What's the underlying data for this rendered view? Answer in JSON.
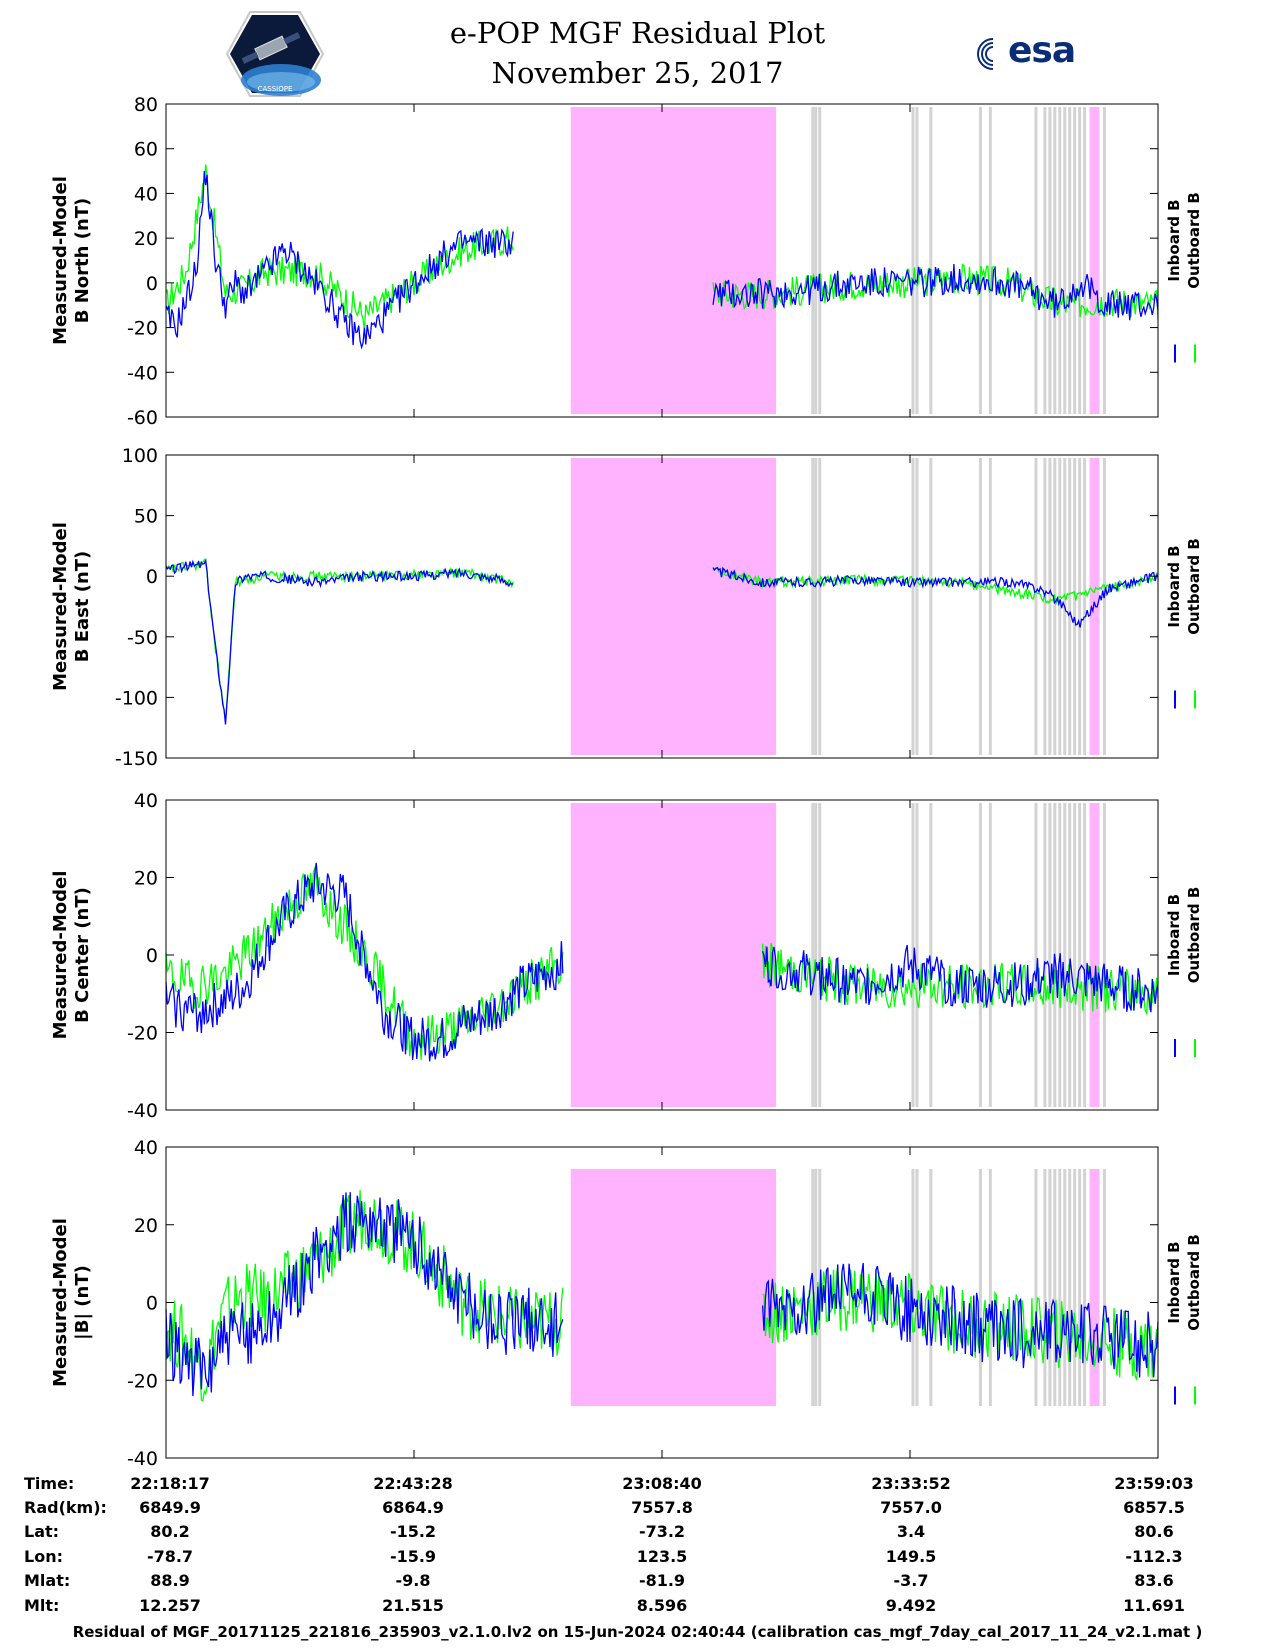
{
  "header": {
    "title": "e-POP MGF Residual Plot",
    "date": "November 25, 2017",
    "left_logo": "cassiope-mission-logo",
    "left_logo_text": "CASSIOPE",
    "right_logo_text": "esa"
  },
  "colors": {
    "inboard": "#0000ff",
    "outboard": "#00ff00",
    "gap_magenta": "#ffb3ff",
    "gap_gray": "#d3d3d3"
  },
  "chart_data": [
    {
      "type": "line",
      "ylabel_line1": "Measured-Model",
      "ylabel_line2": "B North (nT)",
      "ylim": [
        -60,
        80
      ],
      "yticks": [
        "80",
        "60",
        "40",
        "20",
        "0",
        "-20",
        "-40",
        "-60"
      ],
      "yticks_values": [
        80,
        60,
        40,
        20,
        0,
        -20,
        -40,
        -60
      ],
      "legend": [
        "Inboard B",
        "Outboard B"
      ],
      "series": [
        {
          "name": "Inboard B",
          "color": "blue",
          "x": [
            0,
            0.01,
            0.02,
            0.03,
            0.04,
            0.05,
            0.06,
            0.07,
            0.08,
            0.1,
            0.12,
            0.14,
            0.16,
            0.18,
            0.2,
            0.22,
            0.25,
            0.28,
            0.3,
            0.35,
            0.4,
            0.45,
            0.5,
            0.55,
            0.6,
            0.65,
            0.7,
            0.75,
            0.8,
            0.85,
            0.9,
            0.92,
            0.95,
            1.0
          ],
          "values": [
            -15,
            -20,
            -8,
            5,
            50,
            10,
            -10,
            0,
            -5,
            5,
            15,
            5,
            -5,
            -18,
            -25,
            -15,
            0,
            12,
            18,
            18,
            null,
            null,
            null,
            -5,
            -5,
            -3,
            0,
            0,
            2,
            0,
            -10,
            0,
            -10,
            -10
          ]
        },
        {
          "name": "Outboard B",
          "color": "green",
          "x": [
            0,
            0.02,
            0.04,
            0.06,
            0.08,
            0.1,
            0.15,
            0.2,
            0.25,
            0.3,
            0.35,
            0.4,
            0.45,
            0.5,
            0.55,
            0.6,
            0.65,
            0.7,
            0.75,
            0.8,
            0.85,
            0.9,
            0.95,
            1.0
          ],
          "values": [
            -10,
            5,
            50,
            -5,
            -2,
            5,
            5,
            -15,
            0,
            15,
            20,
            null,
            null,
            null,
            -5,
            -5,
            -3,
            0,
            0,
            2,
            0,
            -10,
            -8,
            -10
          ]
        }
      ]
    },
    {
      "type": "line",
      "ylabel_line1": "Measured-Model",
      "ylabel_line2": "B East (nT)",
      "ylim": [
        -150,
        100
      ],
      "yticks": [
        "100",
        "50",
        "0",
        "-50",
        "-100",
        "-150"
      ],
      "yticks_values": [
        100,
        50,
        0,
        -50,
        -100,
        -150
      ],
      "legend": [
        "Inboard B",
        "Outboard B"
      ],
      "series": [
        {
          "name": "Inboard B",
          "color": "blue",
          "x": [
            0,
            0.02,
            0.04,
            0.05,
            0.06,
            0.07,
            0.08,
            0.1,
            0.15,
            0.2,
            0.25,
            0.3,
            0.35,
            0.4,
            0.45,
            0.5,
            0.55,
            0.6,
            0.65,
            0.7,
            0.75,
            0.8,
            0.85,
            0.88,
            0.9,
            0.92,
            0.95,
            1.0
          ],
          "values": [
            5,
            8,
            10,
            -60,
            -120,
            -5,
            0,
            0,
            -5,
            0,
            0,
            3,
            -5,
            null,
            null,
            null,
            5,
            -5,
            -5,
            -3,
            -5,
            -5,
            -5,
            -10,
            -20,
            -40,
            -10,
            0
          ]
        },
        {
          "name": "Outboard B",
          "color": "green",
          "x": [
            0,
            0.02,
            0.04,
            0.05,
            0.06,
            0.07,
            0.1,
            0.2,
            0.3,
            0.35,
            0.4,
            0.45,
            0.5,
            0.55,
            0.6,
            0.7,
            0.8,
            0.9,
            1.0
          ],
          "values": [
            5,
            8,
            10,
            -60,
            -120,
            -5,
            0,
            0,
            3,
            -5,
            null,
            null,
            null,
            5,
            -5,
            -3,
            -5,
            -20,
            0
          ]
        }
      ]
    },
    {
      "type": "line",
      "ylabel_line1": "Measured-Model",
      "ylabel_line2": "B Center (nT)",
      "ylim": [
        -40,
        40
      ],
      "yticks": [
        "40",
        "20",
        "0",
        "-20",
        "-40"
      ],
      "yticks_values": [
        40,
        20,
        0,
        -20,
        -40
      ],
      "legend": [
        "Inboard B",
        "Outboard B"
      ],
      "series": [
        {
          "name": "Inboard B",
          "color": "blue",
          "x": [
            0,
            0.03,
            0.06,
            0.08,
            0.1,
            0.12,
            0.15,
            0.18,
            0.2,
            0.22,
            0.25,
            0.28,
            0.3,
            0.33,
            0.35,
            0.38,
            0.4,
            0.45,
            0.5,
            0.55,
            0.6,
            0.65,
            0.7,
            0.75,
            0.8,
            0.85,
            0.9,
            0.95,
            1.0
          ],
          "values": [
            -12,
            -15,
            -12,
            -8,
            2,
            10,
            18,
            15,
            0,
            -15,
            -22,
            -22,
            -18,
            -15,
            -10,
            -5,
            -2,
            null,
            null,
            null,
            -2,
            -5,
            -8,
            -3,
            -8,
            -8,
            -5,
            -8,
            -10
          ]
        },
        {
          "name": "Outboard B",
          "color": "green",
          "x": [
            0,
            0.03,
            0.06,
            0.08,
            0.1,
            0.12,
            0.15,
            0.2,
            0.25,
            0.3,
            0.35,
            0.4,
            0.45,
            0.5,
            0.55,
            0.6,
            0.7,
            0.8,
            0.9,
            1.0
          ],
          "values": [
            -5,
            -8,
            -5,
            0,
            5,
            12,
            18,
            0,
            -22,
            -18,
            -10,
            -2,
            null,
            null,
            null,
            -2,
            -8,
            -8,
            -8,
            -10
          ]
        }
      ]
    },
    {
      "type": "line",
      "ylabel_line1": "Measured-Model",
      "ylabel_line2": "|B| (nT)",
      "ylim": [
        -40,
        40
      ],
      "yticks": [
        "40",
        "20",
        "0",
        "-20",
        "-40"
      ],
      "yticks_values": [
        40,
        20,
        0,
        -20,
        -40
      ],
      "legend": [
        "Inboard B",
        "Outboard B"
      ],
      "series": [
        {
          "name": "Inboard B",
          "color": "blue",
          "x": [
            0,
            0.02,
            0.04,
            0.05,
            0.06,
            0.08,
            0.1,
            0.12,
            0.15,
            0.18,
            0.2,
            0.22,
            0.25,
            0.28,
            0.3,
            0.32,
            0.35,
            0.38,
            0.4,
            0.45,
            0.5,
            0.55,
            0.6,
            0.65,
            0.7,
            0.75,
            0.8,
            0.85,
            0.9,
            0.95,
            1.0
          ],
          "values": [
            -10,
            -14,
            -20,
            -12,
            -10,
            -8,
            -5,
            0,
            10,
            20,
            23,
            20,
            15,
            8,
            0,
            -3,
            -5,
            -5,
            -5,
            null,
            null,
            null,
            -3,
            0,
            2,
            -2,
            -5,
            -8,
            -8,
            -8,
            -12
          ]
        },
        {
          "name": "Outboard B",
          "color": "green",
          "x": [
            0,
            0.02,
            0.04,
            0.05,
            0.06,
            0.08,
            0.1,
            0.15,
            0.2,
            0.25,
            0.3,
            0.35,
            0.4,
            0.45,
            0.5,
            0.55,
            0.6,
            0.7,
            0.8,
            0.9,
            1.0
          ],
          "values": [
            -6,
            -10,
            -18,
            -8,
            -2,
            2,
            0,
            10,
            23,
            15,
            0,
            -5,
            -5,
            null,
            null,
            null,
            -3,
            2,
            -5,
            -8,
            -12
          ]
        }
      ]
    }
  ],
  "xaxis": {
    "tick_fractions": [
      0,
      0.25,
      0.5,
      0.75,
      1.0
    ]
  },
  "gaps": {
    "magenta": [
      [
        0.408,
        0.615
      ],
      [
        0.931,
        0.941
      ]
    ],
    "gray_lines": [
      0.652,
      0.655,
      0.659,
      0.753,
      0.757,
      0.771,
      0.821,
      0.831,
      0.877,
      0.886,
      0.891,
      0.896,
      0.901,
      0.906,
      0.911,
      0.916,
      0.921,
      0.926,
      0.946
    ]
  },
  "footer_table": {
    "labels": [
      "Time:",
      "Rad(km):",
      "Lat:",
      "Lon:",
      "Mlat:",
      "Mlt:"
    ],
    "columns": [
      {
        "Time": "22:18:17",
        "Rad": "6849.9",
        "Lat": "80.2",
        "Lon": "-78.7",
        "Mlat": "88.9",
        "Mlt": "12.257"
      },
      {
        "Time": "22:43:28",
        "Rad": "6864.9",
        "Lat": "-15.2",
        "Lon": "-15.9",
        "Mlat": "-9.8",
        "Mlt": "21.515"
      },
      {
        "Time": "23:08:40",
        "Rad": "7557.8",
        "Lat": "-73.2",
        "Lon": "123.5",
        "Mlat": "-81.9",
        "Mlt": "8.596"
      },
      {
        "Time": "23:33:52",
        "Rad": "7557.0",
        "Lat": "3.4",
        "Lon": "149.5",
        "Mlat": "-3.7",
        "Mlt": "9.492"
      },
      {
        "Time": "23:59:03",
        "Rad": "6857.5",
        "Lat": "80.6",
        "Lon": "-112.3",
        "Mlat": "83.6",
        "Mlt": "11.691"
      }
    ]
  },
  "footer": "Residual of MGF_20171125_221816_235903_v2.1.0.lv2 on 15-Jun-2024 02:40:44 (calibration cas_mgf_7day_cal_2017_11_24_v2.1.mat )"
}
